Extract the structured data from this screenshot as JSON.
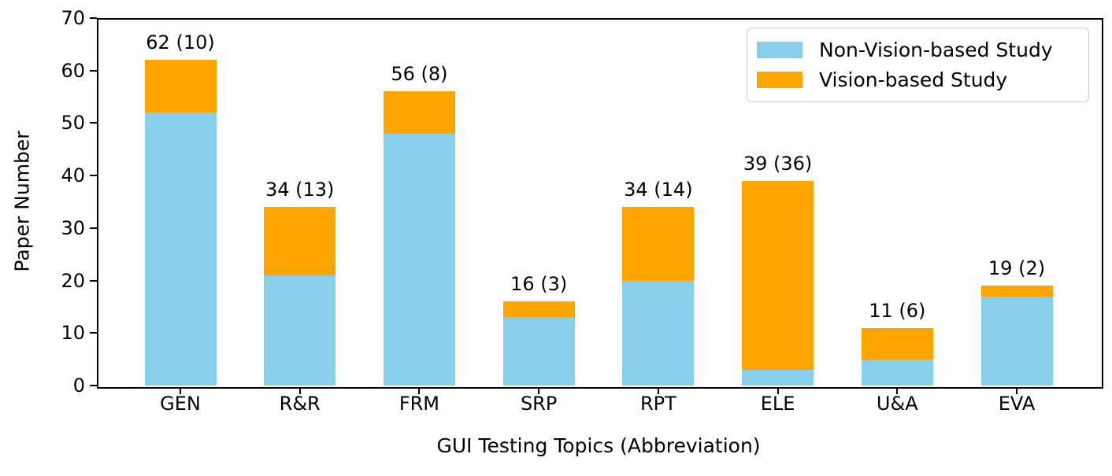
{
  "figure": {
    "ylabel": "Paper Number",
    "xlabel": "GUI Testing Topics (Abbreviation)"
  },
  "legend": {
    "items": [
      {
        "label": "Non-Vision-based Study",
        "color": "#87CEEB"
      },
      {
        "label": "Vision-based Study",
        "color": "#FFA500"
      }
    ]
  },
  "chart_data": {
    "type": "bar",
    "stacked": true,
    "title": "",
    "xlabel": "GUI Testing Topics (Abbreviation)",
    "ylabel": "Paper Number",
    "categories": [
      "GEN",
      "R&R",
      "FRM",
      "SRP",
      "RPT",
      "ELE",
      "U&A",
      "EVA"
    ],
    "series": [
      {
        "name": "Non-Vision-based Study",
        "color": "#87CEEB",
        "values": [
          52,
          21,
          48,
          13,
          20,
          3,
          5,
          17
        ]
      },
      {
        "name": "Vision-based Study",
        "color": "#FFA500",
        "values": [
          10,
          13,
          8,
          3,
          14,
          36,
          6,
          2
        ]
      }
    ],
    "totals": [
      62,
      34,
      56,
      16,
      34,
      39,
      11,
      19
    ],
    "bar_labels": [
      "62 (10)",
      "34 (13)",
      "56 (8)",
      "16 (3)",
      "34 (14)",
      "39 (36)",
      "11 (6)",
      "19 (2)"
    ],
    "ylim": [
      0,
      70
    ],
    "yticks": [
      0,
      10,
      20,
      30,
      40,
      50,
      60,
      70
    ],
    "grid": false,
    "legend_position": "upper right"
  }
}
